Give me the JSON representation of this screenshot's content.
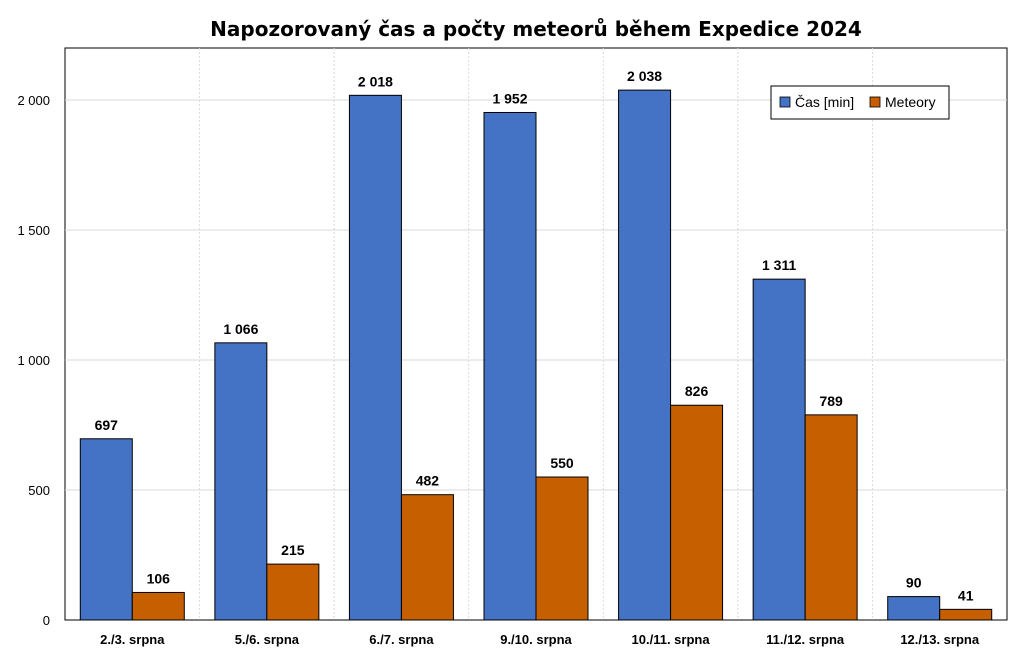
{
  "chart_data": {
    "type": "bar",
    "title": "Napozorovaný čas a počty meteorů během Expedice 2024",
    "categories": [
      "2./3. srpna",
      "5./6. srpna",
      "6./7. srpna",
      "9./10. srpna",
      "10./11. srpna",
      "11./12. srpna",
      "12./13. srpna"
    ],
    "series": [
      {
        "name": "Čas [min]",
        "color": "#4472C4",
        "values": [
          697,
          1066,
          2018,
          1952,
          2038,
          1311,
          90
        ],
        "labels": [
          "697",
          "1 066",
          "2 018",
          "1 952",
          "2 038",
          "1 311",
          "90"
        ]
      },
      {
        "name": "Meteory",
        "color": "#C65F00",
        "values": [
          106,
          215,
          482,
          550,
          826,
          789,
          41
        ],
        "labels": [
          "106",
          "215",
          "482",
          "550",
          "826",
          "789",
          "41"
        ]
      }
    ],
    "ylim": [
      0,
      2200
    ],
    "yticks": [
      0,
      500,
      1000,
      1500,
      2000
    ],
    "ytick_labels": [
      "0",
      "500",
      "1 000",
      "1 500",
      "2 000"
    ],
    "grid": true,
    "legend_position": "top-right"
  }
}
